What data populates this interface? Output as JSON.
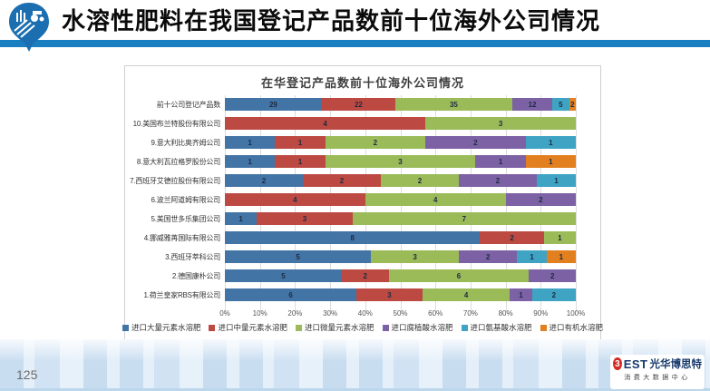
{
  "header": {
    "title": "水溶性肥料在我国登记产品数前十位海外公司情况"
  },
  "chart_data": {
    "type": "bar",
    "stacked": true,
    "normalized_100_percent": true,
    "orientation": "horizontal",
    "title": "在华登记产品数前十位海外公司情况",
    "legend_position": "bottom",
    "grid": "vertical",
    "x_axis": {
      "min": 0,
      "max": 100,
      "tick_step": 10,
      "tick_labels": [
        "0%",
        "10%",
        "20%",
        "30%",
        "40%",
        "50%",
        "60%",
        "70%",
        "80%",
        "90%",
        "100%"
      ]
    },
    "categories": [
      "前十公司登记产品数",
      "10.美国布兰特股份有限公司",
      "9.意大利比奥齐姆公司",
      "8.意大利瓦拉格罗股份公司",
      "7.西班牙艾德拉股份有限公司",
      "6.波兰阿道姆有限公司",
      "5.美国世多乐集团公司",
      "4.挪威雅苒国际有限公司",
      "3.西班牙萃科公司",
      "2.德国康朴公司",
      "1.荷兰皇家RBS有限公司"
    ],
    "series": [
      {
        "name": "进口大量元素水溶肥",
        "color": "#4374a6",
        "values": [
          29,
          0,
          1,
          1,
          2,
          0,
          1,
          8,
          5,
          5,
          6
        ]
      },
      {
        "name": "进口中量元素水溶肥",
        "color": "#bc4a43",
        "values": [
          22,
          4,
          1,
          1,
          2,
          4,
          3,
          2,
          0,
          2,
          3
        ]
      },
      {
        "name": "进口微量元素水溶肥",
        "color": "#9bbb59",
        "values": [
          35,
          3,
          2,
          3,
          2,
          4,
          7,
          1,
          3,
          6,
          4
        ]
      },
      {
        "name": "进口腐植酸水溶肥",
        "color": "#7c61a5",
        "values": [
          12,
          0,
          2,
          1,
          2,
          2,
          0,
          0,
          2,
          2,
          1
        ]
      },
      {
        "name": "进口氨基酸水溶肥",
        "color": "#3fa3c4",
        "values": [
          5,
          0,
          1,
          0,
          1,
          0,
          0,
          0,
          1,
          0,
          2
        ]
      },
      {
        "name": "进口有机水溶肥",
        "color": "#e2801f",
        "values": [
          2,
          0,
          0,
          1,
          0,
          0,
          0,
          0,
          1,
          0,
          0
        ]
      }
    ]
  },
  "footer": {
    "page_number": "125",
    "logo_badge": "3",
    "logo_text": "EST",
    "brand": "光华博思特",
    "brand_sub": "消费大数据中心"
  }
}
